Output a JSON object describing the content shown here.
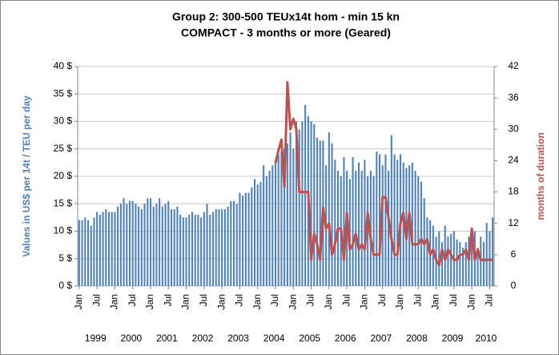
{
  "chart_data": {
    "type": "bar+line",
    "title": "Group 2: 300-500 TEUx14t hom - min 15 kn",
    "subtitle": "COMPACT - 3 months or more (Geared)",
    "y_label": "Values in US$ per 14t / TEU per day",
    "y2_label": "months of duration",
    "categories": [
      "Jan",
      null,
      null,
      null,
      null,
      null,
      "Jul",
      null,
      null,
      null,
      null,
      null,
      "Jan",
      null,
      null,
      null,
      null,
      null,
      "Jul",
      null,
      null,
      null,
      null,
      null,
      "Jan",
      null,
      null,
      null,
      null,
      null,
      "Jul",
      null,
      null,
      null,
      null,
      null,
      "Jan",
      null,
      null,
      null,
      null,
      null,
      "Jul",
      null,
      null,
      null,
      null,
      null,
      "Jan",
      null,
      null,
      null,
      null,
      null,
      "Jul",
      null,
      null,
      null,
      null,
      null,
      "Jan",
      null,
      null,
      null,
      null,
      null,
      "Jul",
      null,
      null,
      null,
      null,
      null,
      "Jan",
      null,
      null,
      null,
      null,
      null,
      "Jul",
      null,
      null,
      null,
      null,
      null,
      "Jan",
      null,
      null,
      null,
      null,
      null,
      "Jul",
      null,
      null,
      null,
      null,
      null,
      "Jan",
      null,
      null,
      null,
      null,
      null,
      "Jul",
      null,
      null,
      null,
      null,
      null,
      "Jan",
      null,
      null,
      null,
      null,
      null,
      "Jul",
      null,
      null,
      null,
      null,
      null,
      "Jan",
      null,
      null,
      null,
      null,
      null,
      "Jul",
      null,
      null,
      null,
      null,
      null,
      "Jan",
      null,
      null,
      null,
      null,
      null,
      "Jul",
      null
    ],
    "years": [
      "1999",
      "2000",
      "2001",
      "2002",
      "2003",
      "2004",
      "2005",
      "2006",
      "2007",
      "2008",
      "2009",
      "2010"
    ],
    "series": [
      {
        "name": "Values in US$ per 14t / TEU per day",
        "color": "#4f81bd",
        "type": "bar",
        "axis": "y",
        "values": [
          12,
          12,
          12.5,
          12,
          11,
          12.5,
          13.5,
          13,
          13.5,
          14,
          13.5,
          13.5,
          13.5,
          14.5,
          15,
          16,
          15,
          15.5,
          15.5,
          15,
          14.5,
          14,
          15,
          16,
          16,
          14.5,
          15,
          16,
          14.5,
          15,
          15.5,
          14,
          14,
          14.5,
          13,
          12.5,
          12.5,
          13,
          13.5,
          13,
          13,
          12.5,
          13.5,
          15,
          13,
          13.5,
          14,
          14,
          14,
          14,
          14.5,
          15.5,
          15.5,
          15,
          17,
          16.5,
          17,
          17,
          18,
          19.5,
          18.5,
          19,
          22,
          20,
          21,
          22,
          23,
          24,
          24.5,
          25,
          26,
          28,
          25,
          30,
          28.5,
          30,
          33,
          31,
          30,
          29.5,
          27,
          26.5,
          26.5,
          22,
          28,
          26,
          23,
          21,
          20,
          23.5,
          21,
          19.5,
          23.5,
          21,
          22.5,
          21,
          23,
          20,
          21,
          20,
          24.5,
          24,
          22,
          24,
          21,
          27.5,
          24,
          23,
          24,
          22.5,
          21.5,
          22,
          22.5,
          21,
          20,
          19,
          16,
          12.5,
          12,
          11,
          9,
          10,
          8,
          11,
          9,
          9.5,
          10,
          8.5,
          8,
          7,
          8,
          9,
          8.5,
          10,
          7,
          9,
          8,
          11.5,
          10,
          12.5
        ]
      },
      {
        "name": "months of duration",
        "color": "#c0504d",
        "type": "line",
        "axis": "y2",
        "values": [
          null,
          null,
          null,
          null,
          null,
          null,
          null,
          null,
          null,
          null,
          null,
          null,
          null,
          null,
          null,
          null,
          null,
          null,
          null,
          null,
          null,
          null,
          null,
          null,
          null,
          null,
          null,
          null,
          null,
          null,
          null,
          null,
          null,
          null,
          null,
          null,
          null,
          null,
          null,
          null,
          null,
          null,
          null,
          null,
          null,
          null,
          null,
          null,
          null,
          null,
          null,
          null,
          null,
          null,
          null,
          null,
          null,
          null,
          null,
          null,
          null,
          null,
          null,
          null,
          null,
          null,
          23.5,
          26,
          28,
          19,
          39,
          30,
          32,
          30,
          18,
          18,
          18,
          18,
          5,
          10,
          8,
          5,
          15,
          11,
          12,
          6,
          8,
          11,
          11,
          5,
          14,
          7,
          8,
          10,
          7,
          8,
          7,
          14,
          9,
          6,
          6,
          6,
          17,
          17,
          13,
          9,
          6,
          6,
          12,
          14,
          9,
          14,
          8,
          8,
          8,
          9,
          8,
          9,
          6,
          7,
          5,
          4,
          7,
          5,
          7,
          6,
          5,
          5,
          6,
          6,
          7,
          5,
          11,
          5,
          7,
          5,
          5,
          5,
          5,
          5
        ]
      }
    ],
    "ylim": [
      0,
      40
    ],
    "yticks": [
      {
        "value": 0,
        "label": "0 $"
      },
      {
        "value": 5,
        "label": "5 $"
      },
      {
        "value": 10,
        "label": "10 $"
      },
      {
        "value": 15,
        "label": "15 $"
      },
      {
        "value": 20,
        "label": "20 $"
      },
      {
        "value": 25,
        "label": "25 $"
      },
      {
        "value": 30,
        "label": "30 $"
      },
      {
        "value": 35,
        "label": "35 $"
      },
      {
        "value": 40,
        "label": "40 $"
      }
    ],
    "y2lim": [
      0,
      42
    ],
    "y2ticks": [
      0,
      6,
      12,
      18,
      24,
      30,
      36,
      42
    ],
    "grid": true
  }
}
